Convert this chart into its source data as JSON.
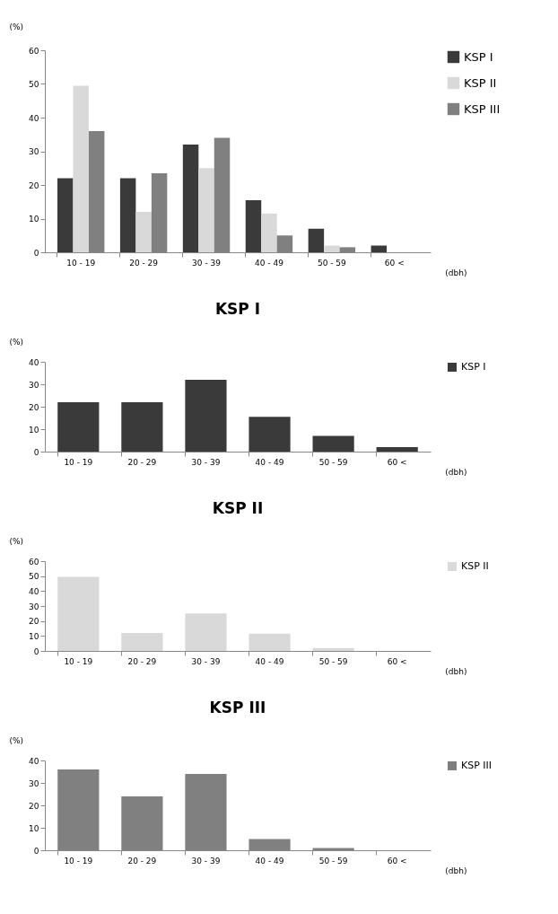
{
  "chart_data": [
    {
      "type": "bar",
      "categories": [
        "10 - 19",
        "20 - 29",
        "30 - 39",
        "40 - 49",
        "50 - 59",
        "60 <"
      ],
      "xlabel": "(dbh)",
      "ylabel": "(%)",
      "ylim": [
        0,
        60
      ],
      "yticks": [
        0,
        10,
        20,
        30,
        40,
        50,
        60
      ],
      "grid": false,
      "legend": "right",
      "series": [
        {
          "name": "KSP I",
          "color": "#3a3a3a",
          "values": [
            22,
            22,
            32,
            15.5,
            7,
            2
          ]
        },
        {
          "name": "KSP II",
          "color": "#d9d9d9",
          "values": [
            49.5,
            12,
            25,
            11.5,
            2,
            0
          ]
        },
        {
          "name": "KSP III",
          "color": "#808080",
          "values": [
            36,
            23.5,
            34,
            5,
            1.5,
            0
          ]
        }
      ]
    },
    {
      "type": "bar",
      "title": "KSP I",
      "categories": [
        "10 - 19",
        "20 - 29",
        "30 - 39",
        "40 - 49",
        "50 - 59",
        "60 <"
      ],
      "xlabel": "(dbh)",
      "ylabel": "(%)",
      "ylim": [
        0,
        40
      ],
      "yticks": [
        0,
        10,
        20,
        30,
        40
      ],
      "grid": false,
      "legend": "right",
      "series": [
        {
          "name": "KSP I",
          "color": "#3a3a3a",
          "values": [
            22,
            22,
            32,
            15.5,
            7,
            2
          ]
        }
      ]
    },
    {
      "type": "bar",
      "title": "KSP II",
      "categories": [
        "10 - 19",
        "20 - 29",
        "30 - 39",
        "40 - 49",
        "50 - 59",
        "60 <"
      ],
      "xlabel": "(dbh)",
      "ylabel": "(%)",
      "ylim": [
        0,
        60
      ],
      "yticks": [
        0,
        10,
        20,
        30,
        40,
        50,
        60
      ],
      "grid": false,
      "legend": "right",
      "series": [
        {
          "name": "KSP II",
          "color": "#d9d9d9",
          "values": [
            49.5,
            12,
            25,
            11.5,
            2,
            0
          ]
        }
      ]
    },
    {
      "type": "bar",
      "title": "KSP III",
      "categories": [
        "10 - 19",
        "20 - 29",
        "30 - 39",
        "40 - 49",
        "50 - 59",
        "60 <"
      ],
      "xlabel": "(dbh)",
      "ylabel": "(%)",
      "ylim": [
        0,
        40
      ],
      "yticks": [
        0,
        10,
        20,
        30,
        40
      ],
      "grid": false,
      "legend": "right",
      "series": [
        {
          "name": "KSP III",
          "color": "#808080",
          "values": [
            36,
            24,
            34,
            5,
            1,
            0
          ]
        }
      ]
    }
  ]
}
